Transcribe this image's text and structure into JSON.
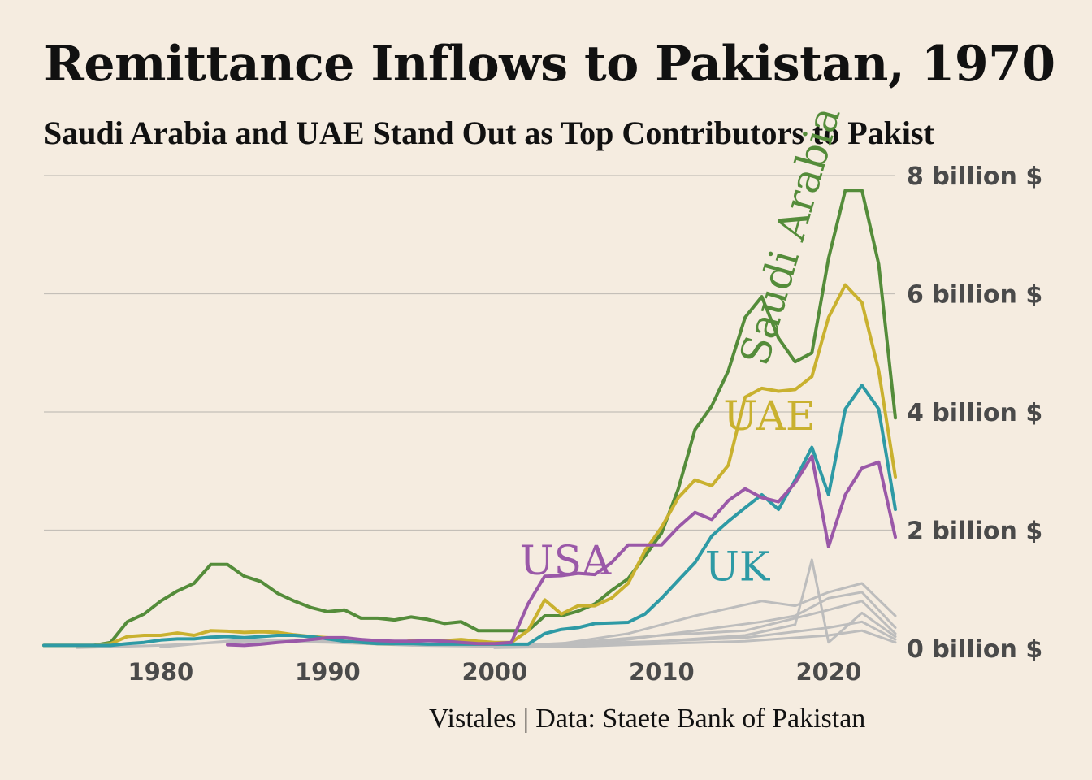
{
  "title": "Remittance Inflows to Pakistan, 1970",
  "subtitle": "Saudi Arabia and UAE Stand Out as Top Contributors to Pakist",
  "caption": "Vistales | Data: Staete Bank of Pakistan",
  "colors": {
    "background": "#f5ece0",
    "grid": "#c4bfb8",
    "other": "#bdbdbd",
    "saudi": "#548c3a",
    "uae": "#c9b12f",
    "uk": "#2e9aa5",
    "usa": "#9a58a8"
  },
  "chart_data": {
    "type": "line",
    "xlim": [
      1973,
      2024
    ],
    "ylim": [
      0,
      8
    ],
    "x_ticks": [
      {
        "value": 1980,
        "label": "1980"
      },
      {
        "value": 1990,
        "label": "1990"
      },
      {
        "value": 2000,
        "label": "2000"
      },
      {
        "value": 2010,
        "label": "2010"
      },
      {
        "value": 2020,
        "label": "2020"
      }
    ],
    "y_ticks": [
      {
        "value": 0,
        "label": "0 billion $"
      },
      {
        "value": 2,
        "label": "2 billion $"
      },
      {
        "value": 4,
        "label": "4 billion $"
      },
      {
        "value": 6,
        "label": "6 billion $"
      },
      {
        "value": 8,
        "label": "8 billion $"
      }
    ],
    "grid": true,
    "series": [
      {
        "name": "Saudi Arabia",
        "key": "saudi",
        "x": [
          1973,
          1974,
          1975,
          1976,
          1977,
          1978,
          1979,
          1980,
          1981,
          1982,
          1983,
          1984,
          1985,
          1986,
          1987,
          1988,
          1989,
          1990,
          1991,
          1992,
          1993,
          1994,
          1995,
          1996,
          1997,
          1998,
          1999,
          2000,
          2001,
          2002,
          2003,
          2004,
          2005,
          2006,
          2007,
          2008,
          2009,
          2010,
          2011,
          2012,
          2013,
          2014,
          2015,
          2016,
          2017,
          2018,
          2019,
          2020,
          2021,
          2022,
          2023,
          2024
        ],
        "y": [
          0.05,
          0.05,
          0.05,
          0.05,
          0.1,
          0.45,
          0.58,
          0.8,
          0.97,
          1.1,
          1.42,
          1.42,
          1.22,
          1.13,
          0.93,
          0.8,
          0.69,
          0.62,
          0.65,
          0.51,
          0.51,
          0.48,
          0.53,
          0.49,
          0.42,
          0.45,
          0.3,
          0.3,
          0.3,
          0.3,
          0.55,
          0.55,
          0.63,
          0.75,
          0.98,
          1.18,
          1.56,
          1.95,
          2.7,
          3.7,
          4.1,
          4.7,
          5.6,
          5.95,
          5.25,
          4.85,
          5.0,
          6.6,
          7.75,
          7.75,
          6.5,
          3.9
        ]
      },
      {
        "name": "UAE",
        "key": "uae",
        "x": [
          1973,
          1974,
          1975,
          1976,
          1977,
          1978,
          1979,
          1980,
          1981,
          1982,
          1983,
          1984,
          1985,
          1986,
          1987,
          1988,
          1989,
          1990,
          1991,
          1992,
          1993,
          1994,
          1995,
          1996,
          1997,
          1998,
          1999,
          2000,
          2001,
          2002,
          2003,
          2004,
          2005,
          2006,
          2007,
          2008,
          2009,
          2010,
          2011,
          2012,
          2013,
          2014,
          2015,
          2016,
          2017,
          2018,
          2019,
          2020,
          2021,
          2022,
          2023,
          2024
        ],
        "y": [
          0.05,
          0.05,
          0.05,
          0.05,
          0.08,
          0.2,
          0.22,
          0.22,
          0.26,
          0.22,
          0.3,
          0.29,
          0.27,
          0.28,
          0.27,
          0.23,
          0.2,
          0.18,
          0.12,
          0.1,
          0.08,
          0.08,
          0.13,
          0.13,
          0.13,
          0.15,
          0.12,
          0.1,
          0.1,
          0.3,
          0.82,
          0.58,
          0.72,
          0.72,
          0.85,
          1.1,
          1.65,
          2.05,
          2.55,
          2.85,
          2.75,
          3.1,
          4.25,
          4.4,
          4.35,
          4.38,
          4.6,
          5.6,
          6.15,
          5.85,
          4.7,
          2.9
        ]
      },
      {
        "name": "UK",
        "key": "uk",
        "x": [
          1973,
          1974,
          1975,
          1976,
          1977,
          1978,
          1979,
          1980,
          1981,
          1982,
          1983,
          1984,
          1985,
          1986,
          1987,
          1988,
          1989,
          1990,
          1991,
          1992,
          1993,
          1994,
          1995,
          1996,
          1997,
          1998,
          1999,
          2000,
          2001,
          2002,
          2003,
          2004,
          2005,
          2006,
          2007,
          2008,
          2009,
          2010,
          2011,
          2012,
          2013,
          2014,
          2015,
          2016,
          2017,
          2018,
          2019,
          2020,
          2021,
          2022,
          2023,
          2024
        ],
        "y": [
          0.05,
          0.05,
          0.05,
          0.05,
          0.05,
          0.08,
          0.1,
          0.14,
          0.16,
          0.16,
          0.19,
          0.2,
          0.18,
          0.2,
          0.22,
          0.22,
          0.2,
          0.16,
          0.12,
          0.1,
          0.08,
          0.08,
          0.08,
          0.07,
          0.07,
          0.07,
          0.07,
          0.07,
          0.07,
          0.07,
          0.25,
          0.32,
          0.35,
          0.42,
          0.43,
          0.44,
          0.58,
          0.85,
          1.15,
          1.45,
          1.9,
          2.15,
          2.38,
          2.6,
          2.35,
          2.85,
          3.4,
          2.6,
          4.05,
          4.45,
          4.05,
          2.35
        ]
      },
      {
        "name": "USA",
        "key": "usa",
        "x": [
          1984,
          1985,
          1986,
          1987,
          1988,
          1989,
          1990,
          1991,
          1992,
          1993,
          1994,
          1995,
          1996,
          1997,
          1998,
          1999,
          2000,
          2001,
          2002,
          2003,
          2004,
          2005,
          2006,
          2007,
          2008,
          2009,
          2010,
          2011,
          2012,
          2013,
          2014,
          2015,
          2016,
          2017,
          2018,
          2019,
          2020,
          2021,
          2022,
          2023,
          2024
        ],
        "y": [
          0.06,
          0.05,
          0.07,
          0.1,
          0.12,
          0.15,
          0.18,
          0.18,
          0.15,
          0.13,
          0.12,
          0.12,
          0.13,
          0.12,
          0.1,
          0.08,
          0.08,
          0.1,
          0.75,
          1.22,
          1.23,
          1.27,
          1.25,
          1.45,
          1.75,
          1.75,
          1.75,
          2.05,
          2.3,
          2.18,
          2.5,
          2.7,
          2.55,
          2.48,
          2.8,
          3.25,
          1.72,
          2.6,
          3.05,
          3.15,
          1.88
        ]
      },
      {
        "name": "",
        "key": "other",
        "x": [
          2000,
          2004,
          2008,
          2012,
          2016,
          2018,
          2020,
          2022,
          2024
        ],
        "y": [
          0.02,
          0.08,
          0.25,
          0.55,
          0.8,
          0.72,
          0.95,
          1.1,
          0.55
        ]
      },
      {
        "name": "",
        "key": "other",
        "x": [
          2000,
          2004,
          2008,
          2012,
          2016,
          2018,
          2020,
          2022,
          2024
        ],
        "y": [
          0.02,
          0.05,
          0.15,
          0.3,
          0.45,
          0.55,
          0.85,
          0.95,
          0.35
        ]
      },
      {
        "name": "",
        "key": "other",
        "x": [
          1975,
          1980,
          1985,
          1990,
          1995,
          2000,
          2005,
          2010,
          2015,
          2020,
          2022,
          2024
        ],
        "y": [
          0.01,
          0.05,
          0.12,
          0.1,
          0.05,
          0.03,
          0.1,
          0.22,
          0.3,
          0.65,
          0.8,
          0.25
        ]
      },
      {
        "name": "",
        "key": "other",
        "x": [
          2000,
          2005,
          2010,
          2015,
          2018,
          2019,
          2020,
          2022,
          2024
        ],
        "y": [
          0.01,
          0.05,
          0.12,
          0.22,
          0.4,
          1.5,
          0.1,
          0.6,
          0.2
        ]
      },
      {
        "name": "",
        "key": "other",
        "x": [
          1980,
          1985,
          1990,
          1995,
          2000,
          2005,
          2010,
          2015,
          2020,
          2022,
          2024
        ],
        "y": [
          0.02,
          0.15,
          0.12,
          0.06,
          0.03,
          0.08,
          0.12,
          0.18,
          0.35,
          0.45,
          0.15
        ]
      },
      {
        "name": "",
        "key": "other",
        "x": [
          2000,
          2005,
          2010,
          2015,
          2020,
          2022,
          2024
        ],
        "y": [
          0.01,
          0.03,
          0.08,
          0.12,
          0.22,
          0.3,
          0.1
        ]
      }
    ]
  },
  "labels": [
    {
      "text": "Saudi Arabia",
      "key": "saudi",
      "x": 2016.3,
      "y": 4.75,
      "angle": -74
    },
    {
      "text": "UAE",
      "key": "uae",
      "x": 2013.7,
      "y": 3.7,
      "angle": 0
    },
    {
      "text": "USA",
      "key": "usa",
      "x": 2001.5,
      "y": 1.25,
      "angle": 0
    },
    {
      "text": "UK",
      "key": "uk",
      "x": 2012.6,
      "y": 1.15,
      "angle": 0
    }
  ]
}
